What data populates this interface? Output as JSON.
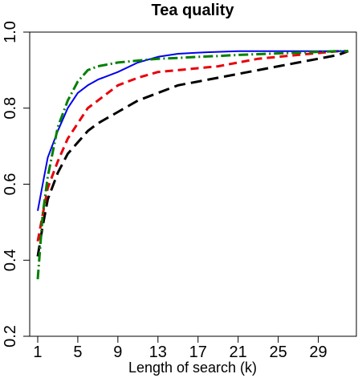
{
  "chart_data": {
    "type": "line",
    "title": "Tea quality",
    "xlabel": "Length of search (k)",
    "ylabel": "",
    "xlim": [
      0.2,
      32.8
    ],
    "ylim": [
      0.2,
      1.0
    ],
    "xticks": [
      "1",
      "5",
      "9",
      "13",
      "17",
      "21",
      "25",
      "29"
    ],
    "yticks": [
      "0.2",
      "0.4",
      "0.6",
      "0.8",
      "1.0"
    ],
    "grid": false,
    "legend": "none",
    "series": [
      {
        "color": "#000000",
        "dash": "14,7",
        "width": 3,
        "x": [
          1,
          1.5,
          2,
          3,
          4,
          5,
          6,
          7,
          9,
          11,
          13,
          15,
          17,
          19,
          21,
          23,
          25,
          27,
          29,
          31,
          32
        ],
        "y": [
          0.41,
          0.49,
          0.56,
          0.63,
          0.68,
          0.71,
          0.74,
          0.76,
          0.79,
          0.82,
          0.84,
          0.86,
          0.87,
          0.88,
          0.89,
          0.9,
          0.91,
          0.92,
          0.93,
          0.94,
          0.95
        ]
      },
      {
        "color": "#e8000b",
        "dash": "10,6",
        "width": 3,
        "x": [
          1,
          1.5,
          2,
          3,
          4,
          5,
          6,
          7,
          9,
          11,
          13,
          15,
          17,
          19,
          21,
          23,
          25,
          27,
          29,
          31,
          32
        ],
        "y": [
          0.45,
          0.52,
          0.59,
          0.66,
          0.72,
          0.76,
          0.8,
          0.82,
          0.86,
          0.88,
          0.895,
          0.9,
          0.905,
          0.91,
          0.92,
          0.93,
          0.935,
          0.94,
          0.945,
          0.95,
          0.95
        ]
      },
      {
        "color": "#0000ee",
        "dash": "",
        "width": 2,
        "x": [
          1,
          1.5,
          2,
          3,
          4,
          5,
          6,
          7,
          9,
          11,
          13,
          15,
          17,
          19,
          21,
          23,
          25,
          27,
          29,
          31,
          32
        ],
        "y": [
          0.53,
          0.6,
          0.67,
          0.74,
          0.8,
          0.84,
          0.86,
          0.875,
          0.895,
          0.92,
          0.935,
          0.943,
          0.946,
          0.948,
          0.95,
          0.95,
          0.95,
          0.95,
          0.95,
          0.95,
          0.95
        ]
      },
      {
        "color": "#008000",
        "dash": "12,4,2,4",
        "width": 3,
        "x": [
          1,
          1.5,
          2,
          3,
          4,
          5,
          6,
          7,
          9,
          11,
          13,
          15,
          17,
          19,
          21,
          23,
          25,
          27,
          29,
          31,
          32
        ],
        "y": [
          0.35,
          0.52,
          0.62,
          0.75,
          0.82,
          0.87,
          0.9,
          0.91,
          0.92,
          0.925,
          0.93,
          0.932,
          0.935,
          0.937,
          0.94,
          0.942,
          0.944,
          0.946,
          0.948,
          0.95,
          0.95
        ]
      }
    ]
  }
}
